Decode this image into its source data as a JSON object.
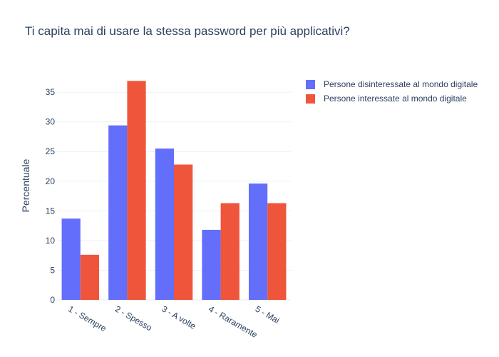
{
  "chart_data": {
    "type": "bar",
    "title": "Ti capita mai di usare la stessa password per più applicativi?",
    "xlabel": "",
    "ylabel": "Percentuale",
    "ylim": [
      0,
      38.5
    ],
    "yticks": [
      0,
      5,
      10,
      15,
      20,
      25,
      30,
      35
    ],
    "categories": [
      "1 - Sempre",
      "2 - Spesso",
      "3 - A volte",
      "4 - Raramente",
      "5 - Mai"
    ],
    "series": [
      {
        "name": "Persone disinteressate al mondo digitale",
        "color": "#636efa",
        "values": [
          13.7,
          29.4,
          25.5,
          11.8,
          19.6
        ]
      },
      {
        "name": "Persone interessate al mondo digitale",
        "color": "#ef553b",
        "values": [
          7.6,
          36.9,
          22.8,
          16.3,
          16.3
        ]
      }
    ],
    "grid": true,
    "legend_position": "top-right"
  }
}
